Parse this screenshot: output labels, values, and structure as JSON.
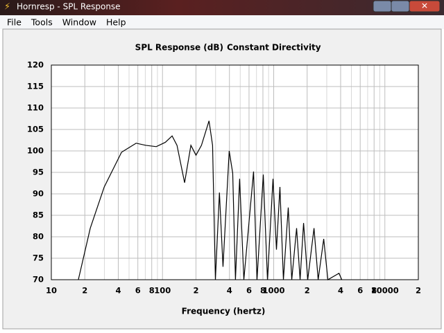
{
  "window": {
    "title": "Hornresp - SPL Response",
    "menu": [
      "File",
      "Tools",
      "Window",
      "Help"
    ]
  },
  "chart_data": {
    "type": "line",
    "title": "SPL Response (dB)",
    "subtitle": "Constant Directivity",
    "x_label": "Frequency (hertz)",
    "x_scale": "log",
    "grid": true,
    "color": "#000000",
    "xlim": [
      10,
      20000
    ],
    "ylim": [
      70,
      120
    ],
    "xticks": [
      10,
      {
        "value": 20,
        "label": "2"
      },
      {
        "value": 40,
        "label": "4"
      },
      {
        "value": 60,
        "label": "6"
      },
      {
        "value": 80,
        "label": "8"
      },
      100,
      {
        "value": 200,
        "label": "2"
      },
      {
        "value": 400,
        "label": "4"
      },
      {
        "value": 600,
        "label": "6"
      },
      {
        "value": 800,
        "label": "8"
      },
      1000,
      {
        "value": 2000,
        "label": "2"
      },
      {
        "value": 4000,
        "label": "4"
      },
      {
        "value": 6000,
        "label": "6"
      },
      {
        "value": 8000,
        "label": "8"
      },
      10000,
      {
        "value": 20000,
        "label": "2"
      }
    ],
    "x_minor_grid": [
      30,
      50,
      70,
      90,
      300,
      500,
      700,
      900,
      3000,
      5000,
      7000,
      9000
    ],
    "yticks": [
      70,
      75,
      80,
      85,
      90,
      95,
      100,
      105,
      110,
      115,
      120
    ],
    "x": [
      17.5,
      22.4,
      29.9,
      42.8,
      57.9,
      70.8,
      87.9,
      106,
      122,
      135,
      158,
      180,
      200,
      224,
      262,
      282,
      299,
      325,
      350,
      398,
      428,
      453,
      494,
      539,
      659,
      708,
      806,
      879,
      986,
      1059,
      1138,
      1223,
      1352,
      1454,
      1607,
      1728,
      1857,
      2024,
      2305,
      2512,
      2818,
      3072,
      3868,
      4098
    ],
    "values": [
      70,
      82,
      91.6,
      99.7,
      101.8,
      101.3,
      101,
      102,
      103.5,
      101.3,
      92.6,
      101.3,
      99,
      101.3,
      107,
      101.3,
      70,
      90.3,
      73,
      100,
      94.8,
      70,
      93.5,
      70,
      95.2,
      70,
      94.5,
      70,
      93.5,
      77,
      91.6,
      70,
      86.8,
      70,
      82,
      70,
      83.2,
      70,
      82,
      70,
      79.5,
      70,
      71.5,
      70
    ]
  }
}
